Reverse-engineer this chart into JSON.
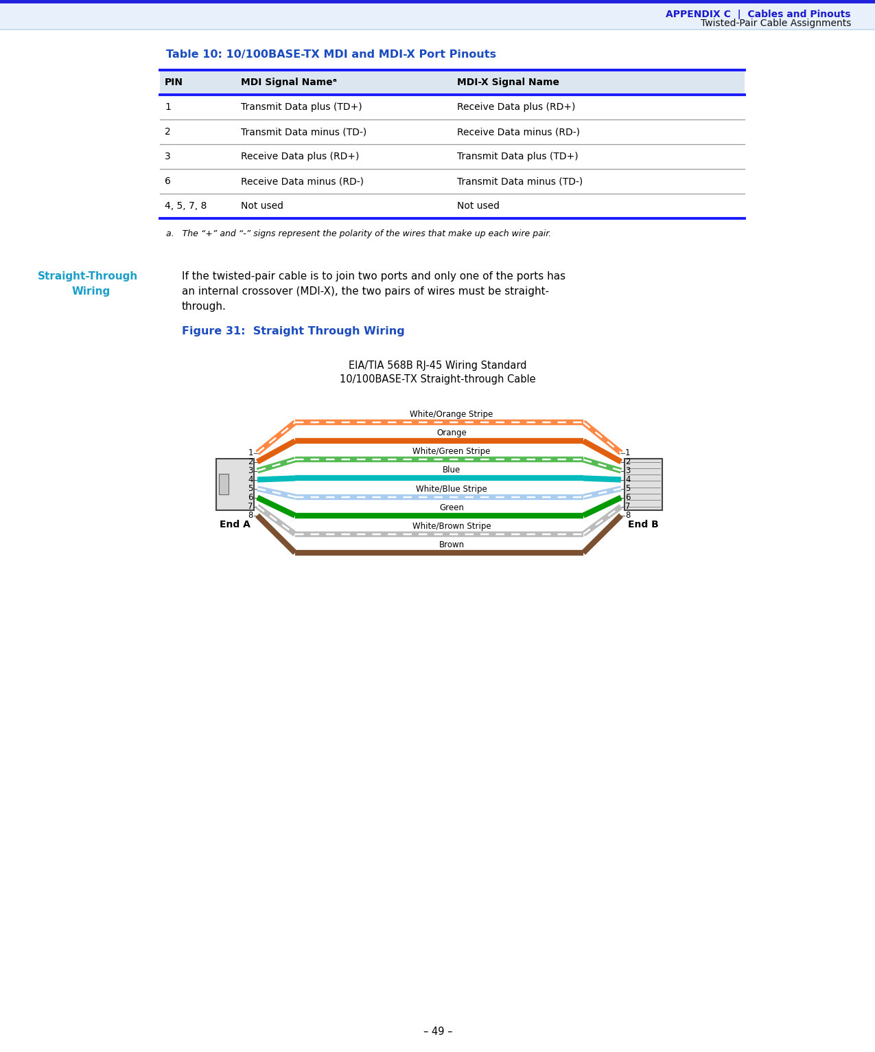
{
  "header_bg": "#dce6f1",
  "header_line_color": "#1a1aff",
  "table_header_text_color": "#000000",
  "table_title_color": "#1a4cc0",
  "table_title": "Table 10: 10/100BASE-TX MDI and MDI-X Port Pinouts",
  "table_headers": [
    "PIN",
    "MDI Signal Nameᵃ",
    "MDI-X Signal Name"
  ],
  "table_rows": [
    [
      "1",
      "Transmit Data plus (TD+)",
      "Receive Data plus (RD+)"
    ],
    [
      "2",
      "Transmit Data minus (TD-)",
      "Receive Data minus (RD-)"
    ],
    [
      "3",
      "Receive Data plus (RD+)",
      "Transmit Data plus (TD+)"
    ],
    [
      "6",
      "Receive Data minus (RD-)",
      "Transmit Data minus (TD-)"
    ],
    [
      "4, 5, 7, 8",
      "Not used",
      "Not used"
    ]
  ],
  "footnote": "a.   The “+” and “-” signs represent the polarity of the wires that make up each wire pair.",
  "page_header_bg": "#e8f0fb",
  "page_header_line": "#2222dd",
  "page_header_appendix": "APPENDIX C  |  Cables and Pinouts",
  "page_header_sub": "Twisted-Pair Cable Assignments",
  "section_label_1": "Straight-Through",
  "section_label_2": "Wiring",
  "section_color": "#1a9fcc",
  "section_body_1": "If the twisted-pair cable is to join two ports and only one of the ports has",
  "section_body_2": "an internal crossover (MDI-X), the two pairs of wires must be straight-",
  "section_body_3": "through.",
  "figure_label": "Figure 31:  Straight Through Wiring",
  "figure_label_color": "#1a4cc0",
  "diagram_title1": "EIA/TIA 568B RJ-45 Wiring Standard",
  "diagram_title2": "10/100BASE-TX Straight-through Cable",
  "wire_labels": [
    "White/Orange Stripe",
    "Orange",
    "White/Green Stripe",
    "Blue",
    "White/Blue Stripe",
    "Green",
    "White/Brown Stripe",
    "Brown"
  ],
  "wire_colors": [
    "#ff8844",
    "#e06010",
    "#55bb55",
    "#00bbbb",
    "#aaccee",
    "#009900",
    "#bbbbbb",
    "#7a5030"
  ],
  "wire_has_stripe": [
    true,
    false,
    true,
    false,
    true,
    false,
    true,
    false
  ],
  "pin_numbers": [
    "1",
    "2",
    "3",
    "4",
    "5",
    "6",
    "7",
    "8"
  ],
  "end_a_label": "End A",
  "end_b_label": "End B",
  "page_number": "– 49 –",
  "bg_color": "#ffffff",
  "text_color": "#000000"
}
